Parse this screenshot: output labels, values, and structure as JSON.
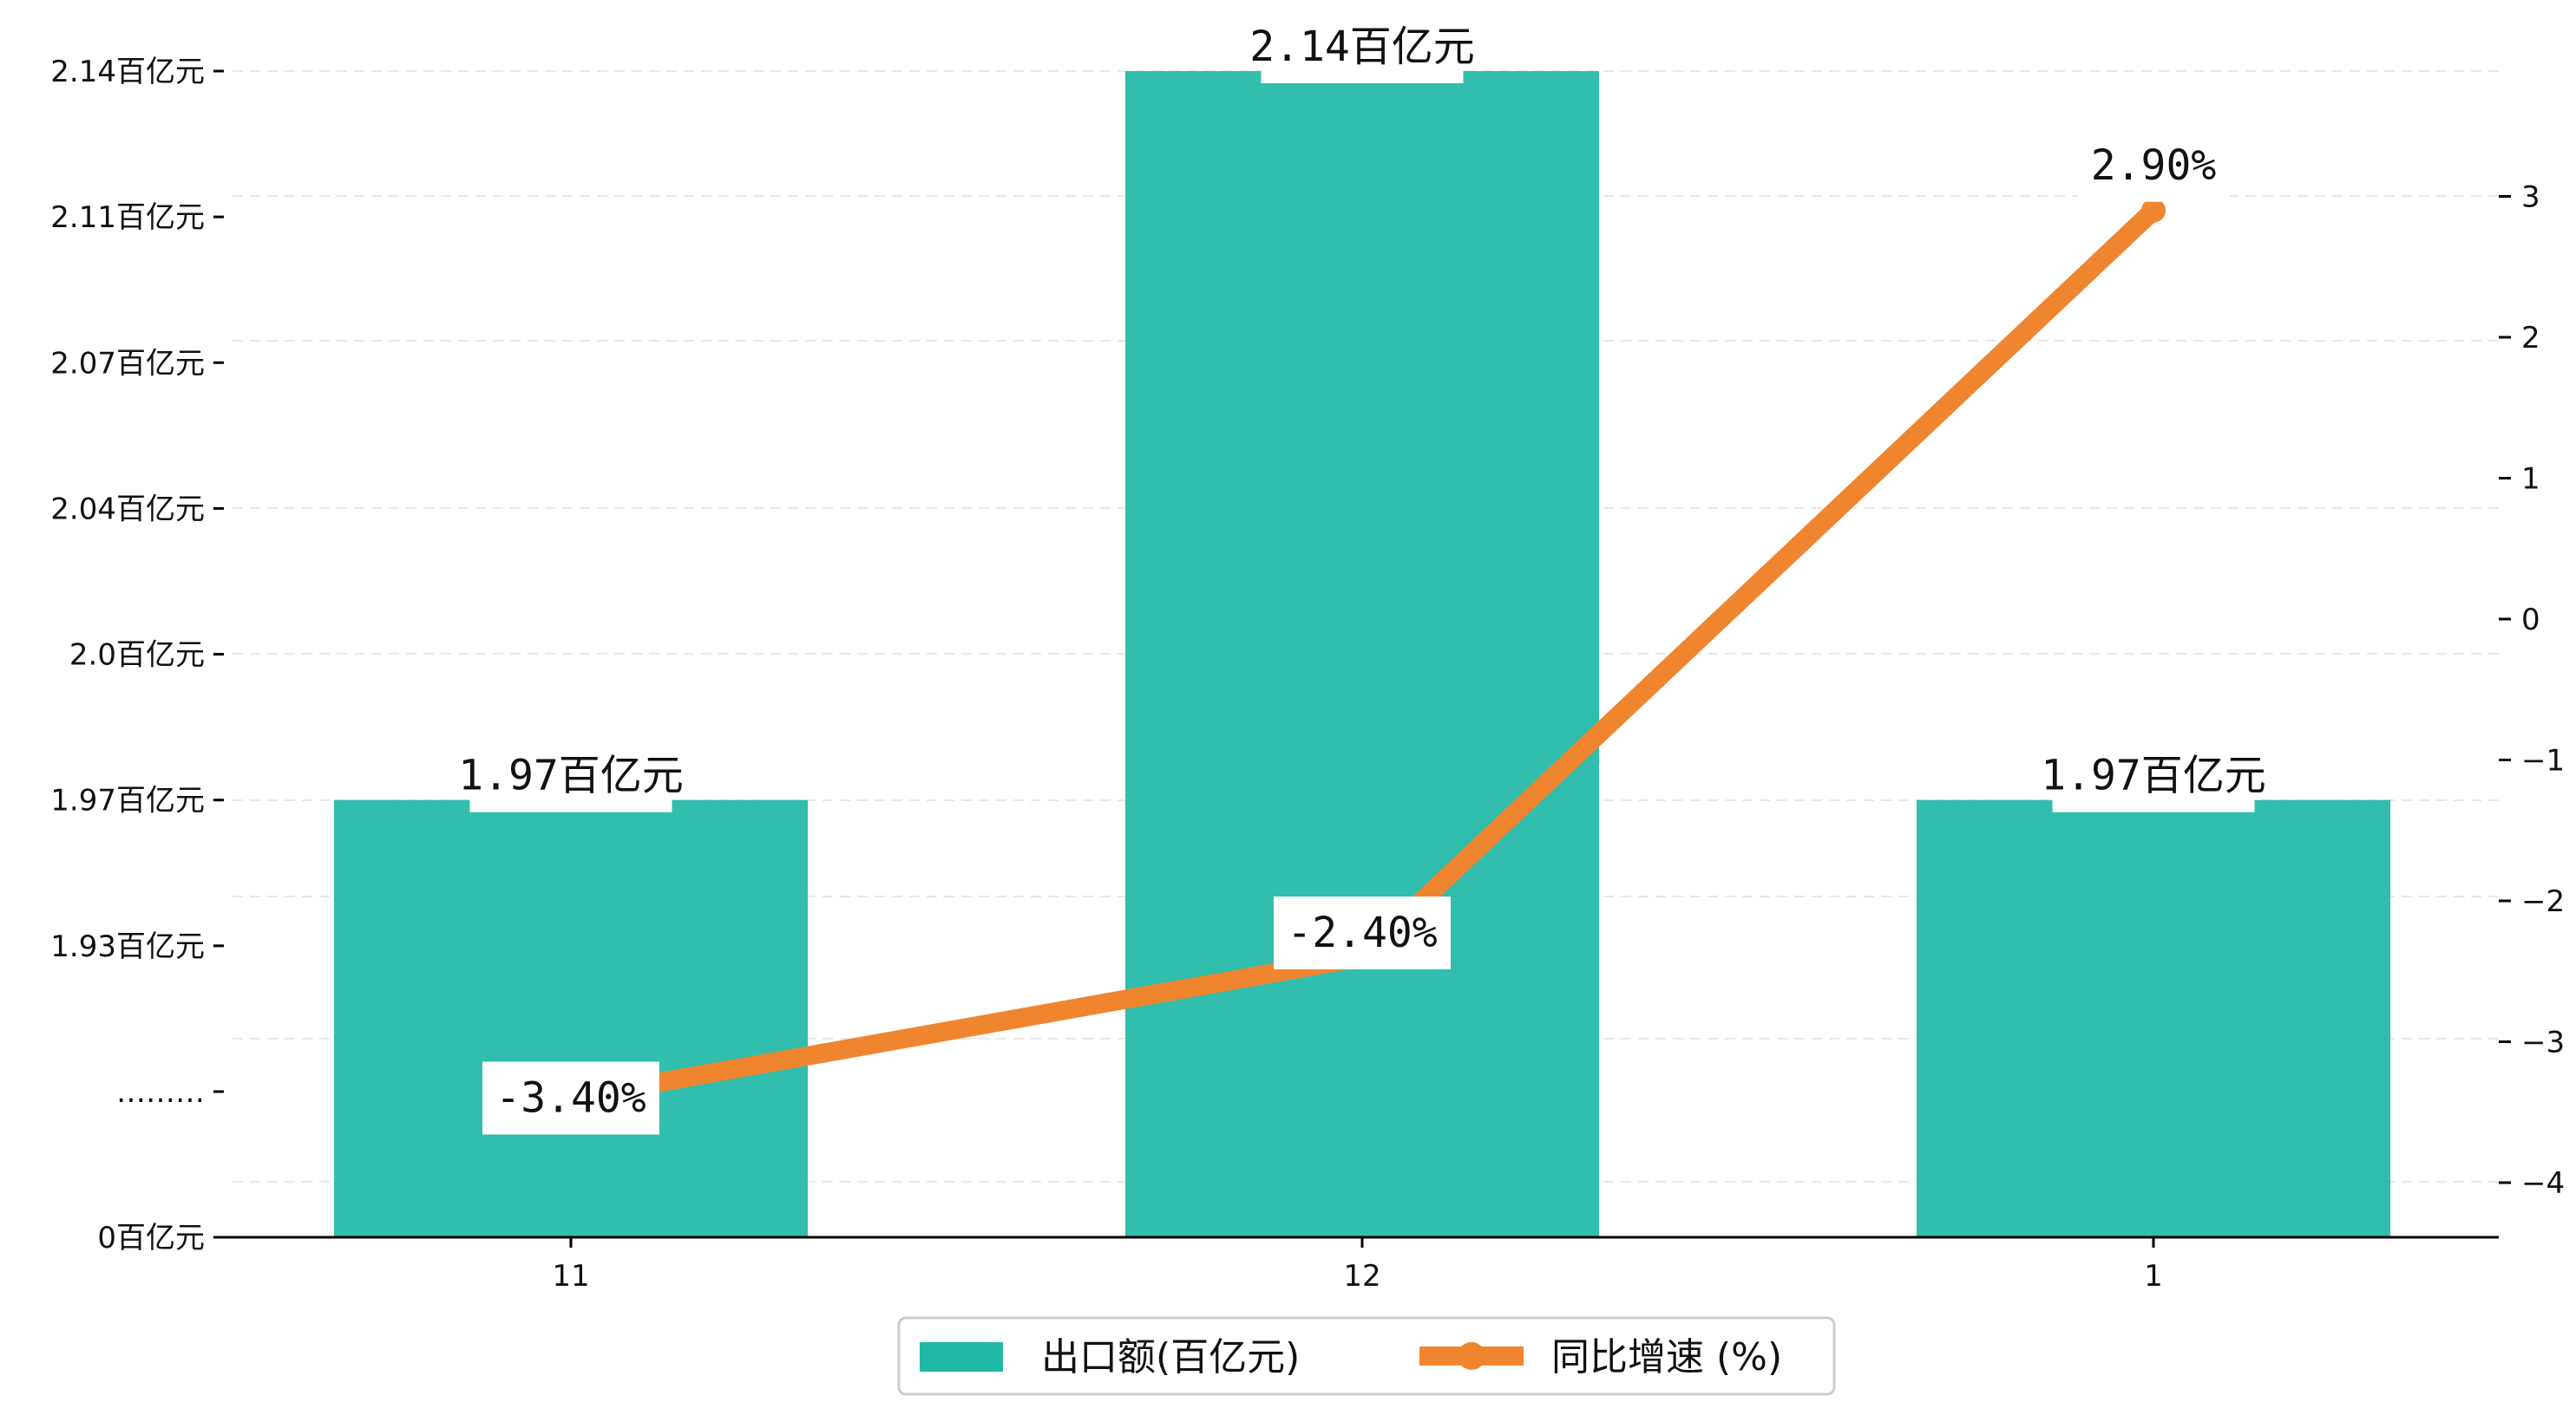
{
  "chart_data": {
    "type": "bar",
    "categories": [
      "11",
      "12",
      "1"
    ],
    "series": [
      {
        "name": "出口额(百亿元)",
        "type": "bar",
        "values": [
          1.97,
          2.14,
          1.97
        ],
        "labels": [
          "1.97百亿元",
          "2.14百亿元",
          "1.97百亿元"
        ],
        "color": "#20B8A5"
      },
      {
        "name": "同比增速 (%)",
        "type": "line",
        "values": [
          -3.4,
          -2.4,
          2.9
        ],
        "labels": [
          "-3.40%",
          "-2.40%",
          "2.90%"
        ],
        "color": "#F08530"
      }
    ],
    "left_axis": {
      "tick_labels": [
        "0百亿元",
        "………",
        "1.93百亿元",
        "1.97百亿元",
        "2.0百亿元",
        "2.04百亿元",
        "2.07百亿元",
        "2.11百亿元",
        "2.14百亿元"
      ],
      "broken": true
    },
    "right_axis": {
      "ticks": [
        -4,
        -3,
        -2,
        -1,
        0,
        1,
        2,
        3
      ],
      "tick_labels": [
        "−4",
        "−3",
        "−2",
        "−1",
        "0",
        "1",
        "2",
        "3"
      ]
    },
    "grid": true,
    "legend_position": "bottom-center",
    "title": "",
    "xlabel": "",
    "ylabel": ""
  }
}
